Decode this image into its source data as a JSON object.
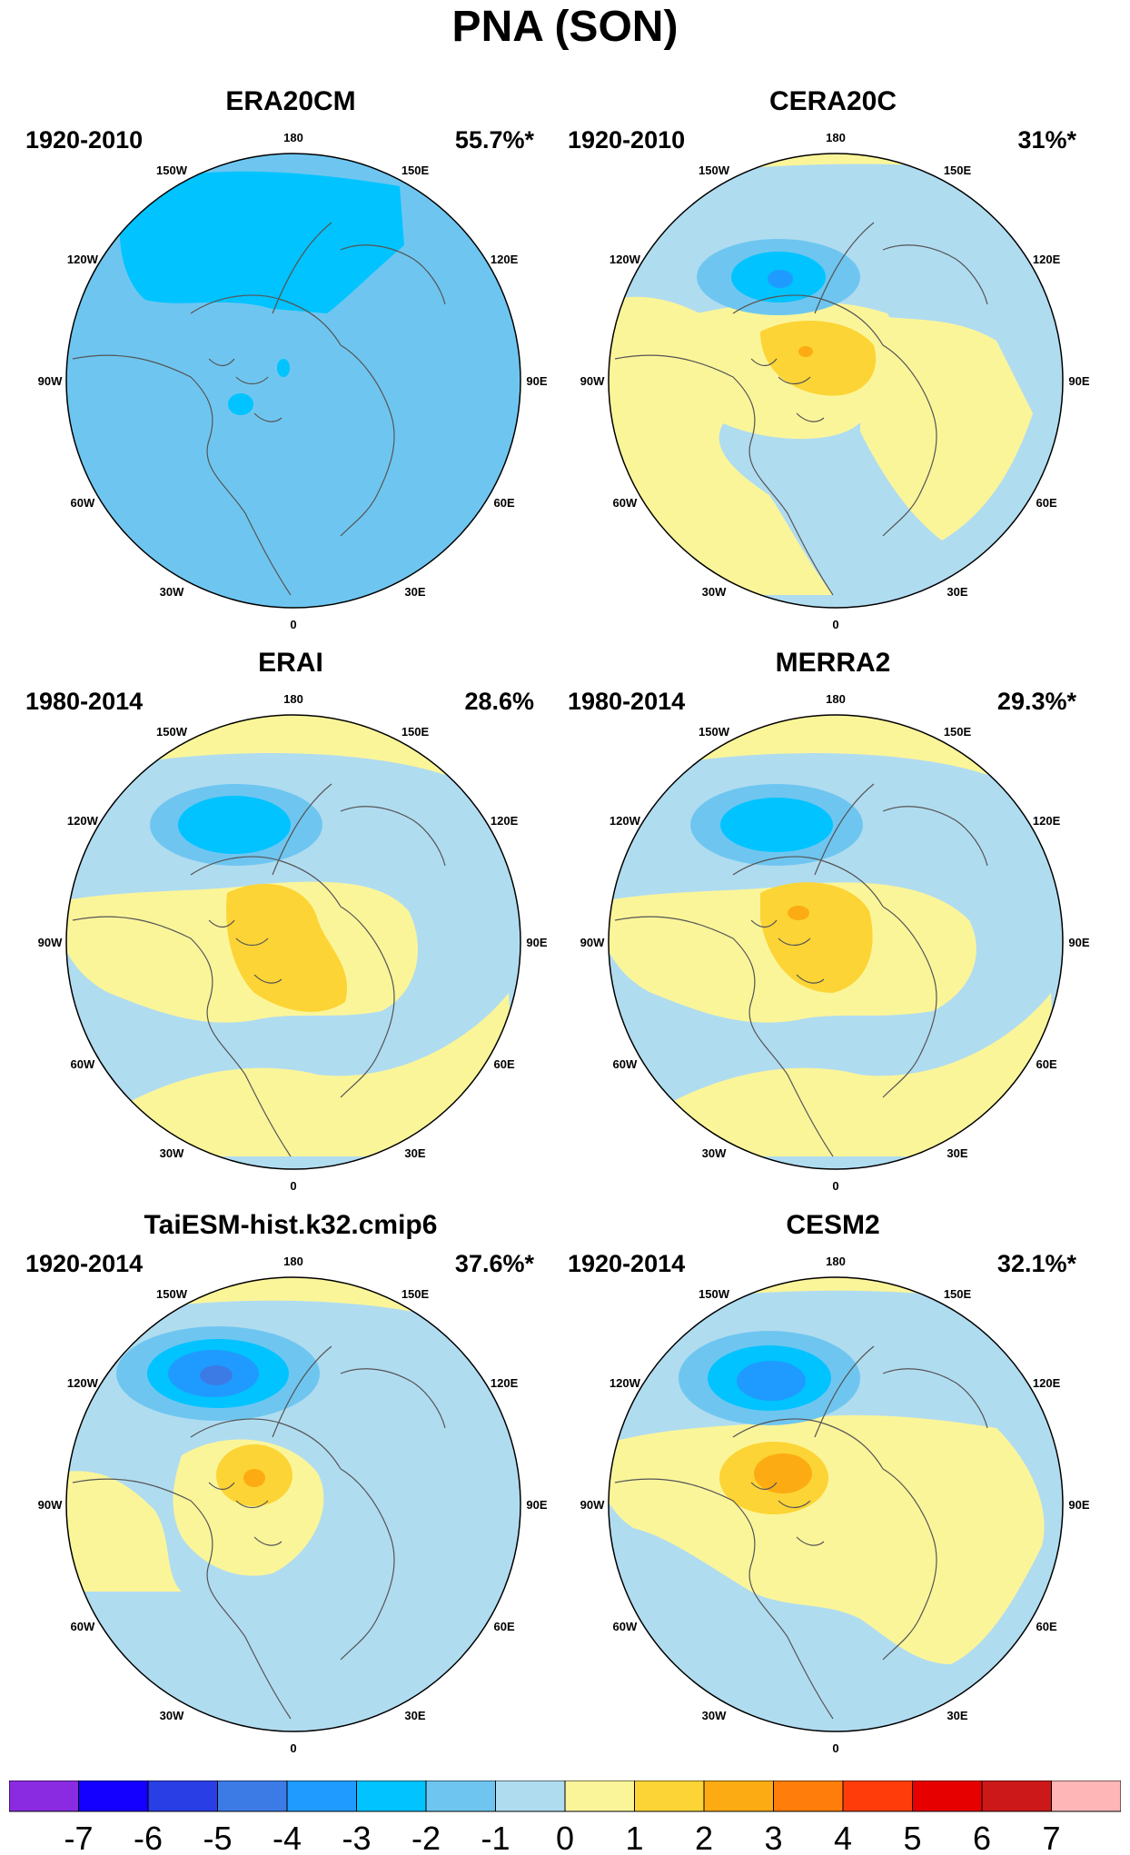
{
  "title": "PNA (SON)",
  "colors": {
    "neg7": "#8a2be2",
    "neg6": "#1400ff",
    "neg5": "#2a3ee6",
    "neg4": "#3c7be6",
    "neg3": "#1f9bff",
    "neg2": "#00c3ff",
    "neg1": "#6ec6f0",
    "neg0": "#b0dcf0",
    "pos0": "#fbf59a",
    "pos1": "#fcd435",
    "pos2": "#fcac12",
    "pos3": "#ff7d0a",
    "pos4": "#ff3c0a",
    "pos5": "#e60000",
    "pos6": "#cc1818",
    "pos7": "#ffb6b6",
    "coast": "#555555"
  },
  "lon_labels": [
    "180",
    "150E",
    "120E",
    "90E",
    "60E",
    "30E",
    "0",
    "30W",
    "60W",
    "90W",
    "120W",
    "150W"
  ],
  "panels": [
    {
      "title": "ERA20CM",
      "period": "1920-2010",
      "variance": "55.7%*"
    },
    {
      "title": "CERA20C",
      "period": "1920-2010",
      "variance": "31%*"
    },
    {
      "title": "ERAI",
      "period": "1980-2014",
      "variance": "28.6%"
    },
    {
      "title": "MERRA2",
      "period": "1980-2014",
      "variance": "29.3%*"
    },
    {
      "title": "TaiESM-hist.k32.cmip6",
      "period": "1920-2014",
      "variance": "37.6%*"
    },
    {
      "title": "CESM2",
      "period": "1920-2014",
      "variance": "32.1%*"
    }
  ],
  "colorbar": {
    "labels": [
      "-7",
      "-6",
      "-5",
      "-4",
      "-3",
      "-2",
      "-1",
      "0",
      "1",
      "2",
      "3",
      "4",
      "5",
      "6",
      "7"
    ]
  }
}
